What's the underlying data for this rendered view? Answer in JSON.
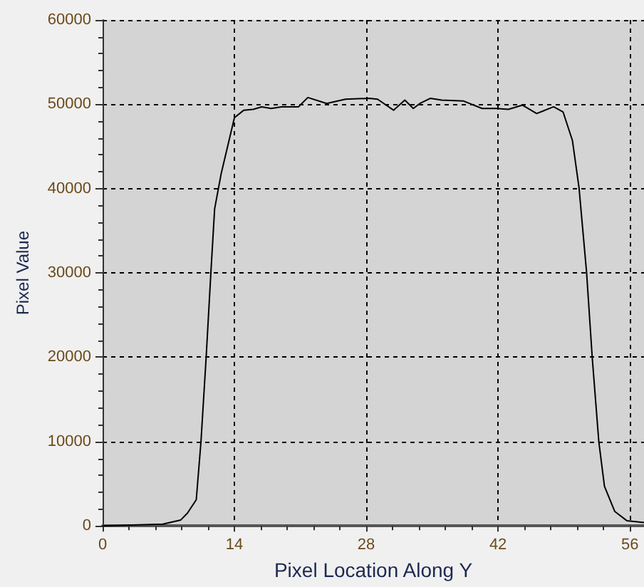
{
  "chart_data": {
    "type": "line",
    "xlabel": "Pixel Location Along Y",
    "ylabel": "Pixel Value",
    "x": [
      0,
      6.4,
      8.3,
      9,
      9.95,
      10.45,
      11,
      11.5,
      11.9,
      12.6,
      14,
      15,
      16,
      16.9,
      17.9,
      19,
      20.8,
      21.8,
      23.8,
      25.8,
      28.3,
      29.2,
      30.9,
      32.1,
      33,
      33.7,
      34.8,
      36,
      38.3,
      40.3,
      41.8,
      43.1,
      44.6,
      46.1,
      47.9,
      48.9,
      49.9,
      50.6,
      51.4,
      52,
      52.7,
      53.3,
      54.4,
      55.7,
      57.5
    ],
    "series": [
      {
        "color": "#000000",
        "values": [
          0,
          200,
          700,
          1500,
          3100,
          10000,
          20000,
          30000,
          37600,
          41800,
          48400,
          49300,
          49400,
          49700,
          49500,
          49700,
          49700,
          50800,
          50100,
          50600,
          50700,
          50600,
          49300,
          50500,
          49500,
          50100,
          50700,
          50500,
          50400,
          49500,
          49500,
          49400,
          49900,
          48900,
          49700,
          49100,
          45700,
          40100,
          30100,
          20000,
          10000,
          4700,
          1700,
          600,
          400
        ]
      }
    ],
    "xlim": [
      0,
      57.5
    ],
    "xticks": [
      0,
      14,
      28,
      42,
      56
    ],
    "ylim": [
      0,
      60000
    ],
    "yticks": [
      0,
      10000,
      20000,
      30000,
      40000,
      50000,
      60000
    ],
    "grid": true,
    "marker": "none",
    "line_style": "solid"
  }
}
